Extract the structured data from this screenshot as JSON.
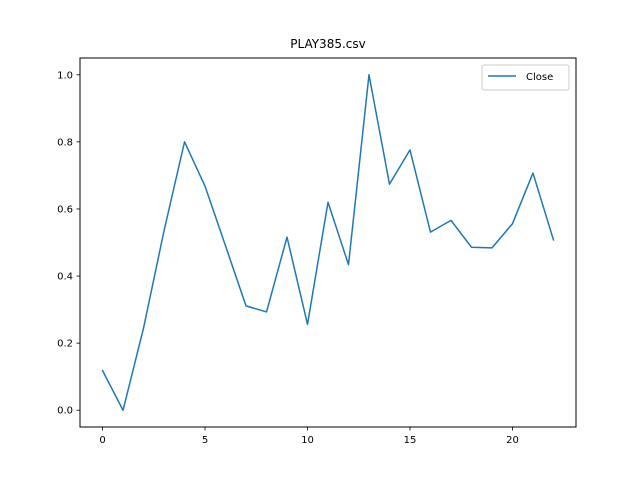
{
  "chart_data": {
    "type": "line",
    "title": "PLAY385.csv",
    "xlabel": "",
    "ylabel": "",
    "xlim": [
      -1.1,
      23.1
    ],
    "ylim": [
      -0.05,
      1.05
    ],
    "x_ticks": [
      0,
      5,
      10,
      15,
      20
    ],
    "y_ticks": [
      0.0,
      0.2,
      0.4,
      0.6,
      0.8,
      1.0
    ],
    "x_tick_labels": [
      "0",
      "5",
      "10",
      "15",
      "20"
    ],
    "y_tick_labels": [
      "0.0",
      "0.2",
      "0.4",
      "0.6",
      "0.8",
      "1.0"
    ],
    "grid": false,
    "legend_position": "top-right",
    "series": [
      {
        "name": "Close",
        "color": "#1f77b4",
        "x": [
          0,
          1,
          2,
          3,
          4,
          5,
          6,
          7,
          8,
          9,
          10,
          11,
          12,
          13,
          14,
          15,
          16,
          17,
          18,
          19,
          20,
          21,
          22
        ],
        "values": [
          0.118,
          0.0,
          0.245,
          0.535,
          0.8,
          0.668,
          0.49,
          0.311,
          0.293,
          0.516,
          0.256,
          0.62,
          0.434,
          1.0,
          0.674,
          0.776,
          0.531,
          0.566,
          0.486,
          0.484,
          0.556,
          0.707,
          0.508
        ]
      }
    ]
  }
}
